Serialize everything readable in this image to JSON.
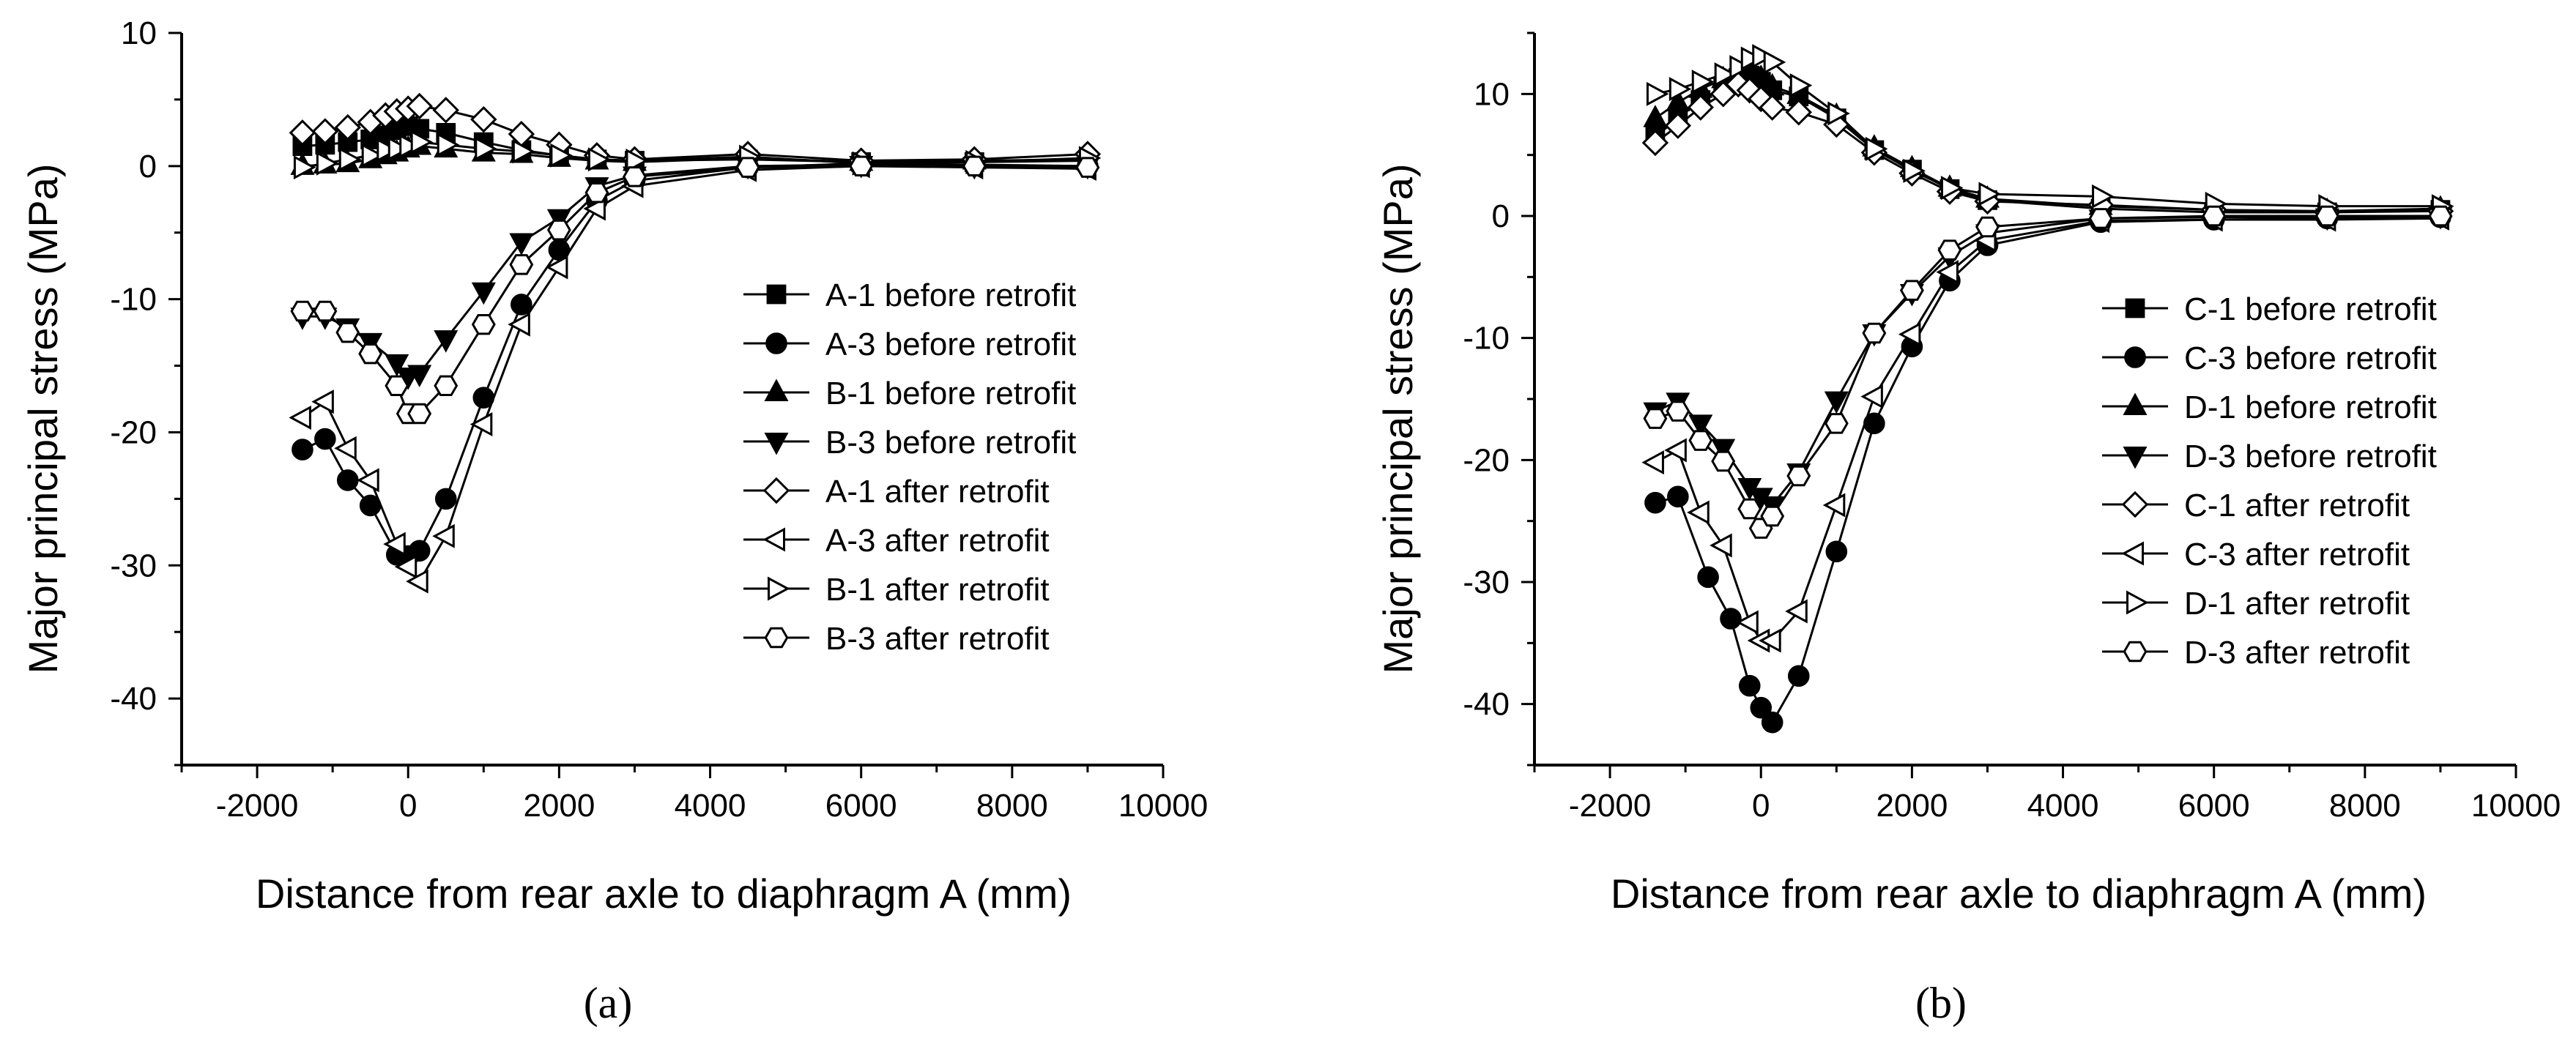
{
  "chart_data": [
    {
      "type": "line",
      "panel_label": "(a)",
      "xlabel": "Distance from rear axle to diaphragm A (mm)",
      "ylabel": "Major principal stress (MPa)",
      "xlim": [
        -3000,
        10000
      ],
      "ylim": [
        -45,
        10
      ],
      "xticks": [
        -2000,
        0,
        2000,
        4000,
        6000,
        8000,
        10000
      ],
      "yticks": [
        10,
        0,
        -10,
        -20,
        -30,
        -40
      ],
      "xtick_labels": [
        "-2000",
        "0",
        "2000",
        "4000",
        "6000",
        "8000",
        "10000"
      ],
      "ytick_labels": [
        "10",
        "0",
        "-10",
        "-20",
        "-30",
        "-40"
      ],
      "grid": false,
      "legend_position": "center-right",
      "series": [
        {
          "name": "A-1 before retrofit",
          "marker": "square",
          "filled": true,
          "x": [
            -1400,
            -1100,
            -800,
            -500,
            -300,
            -150,
            0,
            150,
            500,
            1000,
            1500,
            2000,
            2500,
            3000,
            4500,
            6000,
            7500,
            9000
          ],
          "y": [
            1.5,
            1.6,
            1.8,
            2.0,
            2.3,
            2.7,
            3.0,
            2.8,
            2.5,
            1.8,
            1.2,
            0.8,
            0.5,
            0.4,
            0.5,
            0.3,
            0.3,
            0.4
          ]
        },
        {
          "name": "A-3 before retrofit",
          "marker": "circle",
          "filled": true,
          "x": [
            -1400,
            -1100,
            -800,
            -500,
            -150,
            0,
            150,
            500,
            1000,
            1500,
            2000,
            2500,
            3000,
            4500,
            6000,
            7500,
            9000
          ],
          "y": [
            -21.3,
            -20.5,
            -23.6,
            -25.5,
            -29.2,
            -29.3,
            -28.9,
            -25.0,
            -17.4,
            -10.4,
            -6.3,
            -2.6,
            -1.1,
            -0.1,
            0.2,
            0.1,
            0.0
          ]
        },
        {
          "name": "B-1 before retrofit",
          "marker": "triangle-up",
          "filled": true,
          "x": [
            -1400,
            -1100,
            -800,
            -500,
            -300,
            -150,
            0,
            150,
            500,
            1000,
            1500,
            2000,
            2500,
            3000,
            4500,
            6000,
            7500,
            9000
          ],
          "y": [
            0.0,
            0.1,
            0.2,
            0.5,
            0.8,
            1.0,
            1.3,
            1.5,
            1.3,
            1.0,
            0.9,
            0.6,
            0.4,
            0.3,
            0.6,
            0.3,
            0.4,
            0.5
          ]
        },
        {
          "name": "B-3 before retrofit",
          "marker": "triangle-down",
          "filled": true,
          "x": [
            -1400,
            -1100,
            -800,
            -500,
            -150,
            0,
            150,
            500,
            1000,
            1500,
            2000,
            2500,
            3000,
            4500,
            6000,
            7500,
            9000
          ],
          "y": [
            -11.3,
            -11.3,
            -12.1,
            -13.2,
            -14.8,
            -15.8,
            -15.6,
            -13.0,
            -9.4,
            -5.7,
            -3.9,
            -1.5,
            -0.7,
            0.0,
            0.1,
            0.0,
            0.0
          ]
        },
        {
          "name": "A-1 after retrofit",
          "marker": "diamond",
          "filled": false,
          "x": [
            -1400,
            -1100,
            -800,
            -500,
            -300,
            -150,
            0,
            150,
            500,
            1000,
            1500,
            2000,
            2500,
            3000,
            4500,
            6000,
            7500,
            9000
          ],
          "y": [
            2.5,
            2.6,
            2.9,
            3.3,
            3.8,
            4.1,
            4.3,
            4.5,
            4.2,
            3.5,
            2.4,
            1.6,
            0.8,
            0.5,
            0.9,
            0.4,
            0.5,
            0.9
          ]
        },
        {
          "name": "A-3 after retrofit",
          "marker": "triangle-left",
          "filled": false,
          "x": [
            -1400,
            -1100,
            -800,
            -500,
            -150,
            0,
            150,
            500,
            1000,
            1500,
            2000,
            2500,
            3000,
            4500,
            6000,
            7500,
            9000
          ],
          "y": [
            -18.9,
            -17.7,
            -21.2,
            -23.6,
            -28.4,
            -30.1,
            -31.2,
            -27.8,
            -19.4,
            -11.9,
            -7.6,
            -3.2,
            -1.5,
            -0.3,
            0.0,
            -0.1,
            -0.2
          ]
        },
        {
          "name": "B-1 after retrofit",
          "marker": "triangle-right",
          "filled": false,
          "x": [
            -1400,
            -1100,
            -800,
            -500,
            -300,
            -150,
            0,
            150,
            500,
            1000,
            1500,
            2000,
            2500,
            3000,
            4500,
            6000,
            7500,
            9000
          ],
          "y": [
            -0.1,
            0.2,
            0.5,
            0.8,
            1.2,
            1.3,
            1.5,
            1.8,
            1.6,
            1.3,
            1.1,
            0.8,
            0.5,
            0.4,
            0.7,
            0.2,
            0.3,
            0.6
          ]
        },
        {
          "name": "B-3 after retrofit",
          "marker": "hexagon",
          "filled": false,
          "x": [
            -1400,
            -1100,
            -800,
            -500,
            -150,
            0,
            150,
            500,
            1000,
            1500,
            2000,
            2500,
            3000,
            4500,
            6000,
            7500,
            9000
          ],
          "y": [
            -10.9,
            -10.9,
            -12.5,
            -14.1,
            -16.5,
            -18.6,
            -18.6,
            -16.5,
            -11.9,
            -7.4,
            -4.8,
            -2.0,
            -0.8,
            -0.1,
            0.0,
            0.0,
            -0.1
          ]
        }
      ]
    },
    {
      "type": "line",
      "panel_label": "(b)",
      "xlabel": "Distance from rear axle to diaphragm A (mm)",
      "ylabel": "Major principal stress (MPa)",
      "xlim": [
        -3000,
        10000
      ],
      "ylim": [
        -45,
        15
      ],
      "xticks": [
        -2000,
        0,
        2000,
        4000,
        6000,
        8000,
        10000
      ],
      "yticks": [
        10,
        0,
        -10,
        -20,
        -30,
        -40
      ],
      "xtick_labels": [
        "-2000",
        "0",
        "2000",
        "4000",
        "6000",
        "8000",
        "10000"
      ],
      "ytick_labels": [
        "10",
        "0",
        "-10",
        "-20",
        "-30",
        "-40"
      ],
      "grid": false,
      "legend_position": "center-right",
      "series": [
        {
          "name": "C-1 before retrofit",
          "marker": "square",
          "filled": true,
          "x": [
            -1400,
            -1100,
            -800,
            -500,
            -300,
            -150,
            0,
            150,
            500,
            1000,
            1500,
            2000,
            2500,
            3000,
            4500,
            6000,
            7500,
            9000
          ],
          "y": [
            6.5,
            8.0,
            9.5,
            10.5,
            11.3,
            11.5,
            11.0,
            10.3,
            9.8,
            8.0,
            5.4,
            3.8,
            2.2,
            1.3,
            0.6,
            0.3,
            0.3,
            0.5
          ]
        },
        {
          "name": "C-3 before retrofit",
          "marker": "circle",
          "filled": true,
          "x": [
            -1400,
            -1100,
            -700,
            -400,
            -150,
            0,
            150,
            500,
            1000,
            1500,
            2000,
            2500,
            3000,
            4500,
            6000,
            7500,
            9000
          ],
          "y": [
            -23.5,
            -23.0,
            -29.6,
            -33.0,
            -38.5,
            -40.3,
            -41.5,
            -37.7,
            -27.5,
            -17.0,
            -10.7,
            -5.3,
            -2.4,
            -0.5,
            -0.3,
            -0.2,
            -0.1
          ]
        },
        {
          "name": "D-1 before retrofit",
          "marker": "triangle-up",
          "filled": true,
          "x": [
            -1400,
            -1100,
            -800,
            -500,
            -300,
            -150,
            0,
            150,
            500,
            1000,
            1500,
            2000,
            2500,
            3000,
            4500,
            6000,
            7500,
            9000
          ],
          "y": [
            8.0,
            9.3,
            10.4,
            11.2,
            11.6,
            11.8,
            11.3,
            10.6,
            9.9,
            8.2,
            5.6,
            3.9,
            2.3,
            1.4,
            0.8,
            0.5,
            0.4,
            0.6
          ]
        },
        {
          "name": "D-3 before retrofit",
          "marker": "triangle-down",
          "filled": true,
          "x": [
            -1400,
            -1100,
            -800,
            -500,
            -150,
            0,
            150,
            500,
            1000,
            1500,
            2000,
            2500,
            3000,
            4500,
            6000,
            7500,
            9000
          ],
          "y": [
            -16.0,
            -15.2,
            -17.0,
            -19.0,
            -22.2,
            -23.0,
            -23.7,
            -21.0,
            -15.1,
            -9.6,
            -6.3,
            -3.3,
            -1.4,
            -0.2,
            -0.1,
            -0.1,
            0.0
          ]
        },
        {
          "name": "C-1 after retrofit",
          "marker": "diamond",
          "filled": false,
          "x": [
            -1400,
            -1100,
            -800,
            -500,
            -300,
            -150,
            0,
            150,
            500,
            1000,
            1500,
            2000,
            2500,
            3000,
            4500,
            6000,
            7500,
            9000
          ],
          "y": [
            6.0,
            7.4,
            8.9,
            10.0,
            10.8,
            10.3,
            9.6,
            8.9,
            8.5,
            7.5,
            5.2,
            3.5,
            2.0,
            1.2,
            0.9,
            0.5,
            0.3,
            0.4
          ]
        },
        {
          "name": "C-3 after retrofit",
          "marker": "triangle-left",
          "filled": false,
          "x": [
            -1400,
            -1100,
            -800,
            -500,
            -150,
            0,
            150,
            500,
            1000,
            1500,
            2000,
            2500,
            3000,
            4500,
            6000,
            7500,
            9000
          ],
          "y": [
            -20.2,
            -19.2,
            -24.3,
            -27.0,
            -33.3,
            -34.8,
            -34.8,
            -32.4,
            -23.7,
            -14.8,
            -9.7,
            -4.6,
            -2.0,
            -0.4,
            -0.3,
            -0.3,
            -0.2
          ]
        },
        {
          "name": "D-1 after retrofit",
          "marker": "triangle-right",
          "filled": false,
          "x": [
            -1400,
            -1100,
            -800,
            -500,
            -300,
            -150,
            0,
            150,
            500,
            1000,
            1500,
            2000,
            2500,
            3000,
            4500,
            6000,
            7500,
            9000
          ],
          "y": [
            10.0,
            10.4,
            11.0,
            11.6,
            12.2,
            12.9,
            13.1,
            12.6,
            10.7,
            8.4,
            5.5,
            3.7,
            2.3,
            1.8,
            1.6,
            1.0,
            0.8,
            0.8
          ]
        },
        {
          "name": "D-3 after retrofit",
          "marker": "hexagon",
          "filled": false,
          "x": [
            -1400,
            -1100,
            -800,
            -500,
            -150,
            0,
            150,
            500,
            1000,
            1500,
            2000,
            2500,
            3000,
            4500,
            6000,
            7500,
            9000
          ],
          "y": [
            -16.6,
            -16.0,
            -18.4,
            -20.1,
            -24.0,
            -25.6,
            -24.6,
            -21.3,
            -17.0,
            -9.6,
            -6.1,
            -2.8,
            -0.9,
            -0.2,
            0.0,
            0.0,
            0.0
          ]
        }
      ]
    }
  ]
}
